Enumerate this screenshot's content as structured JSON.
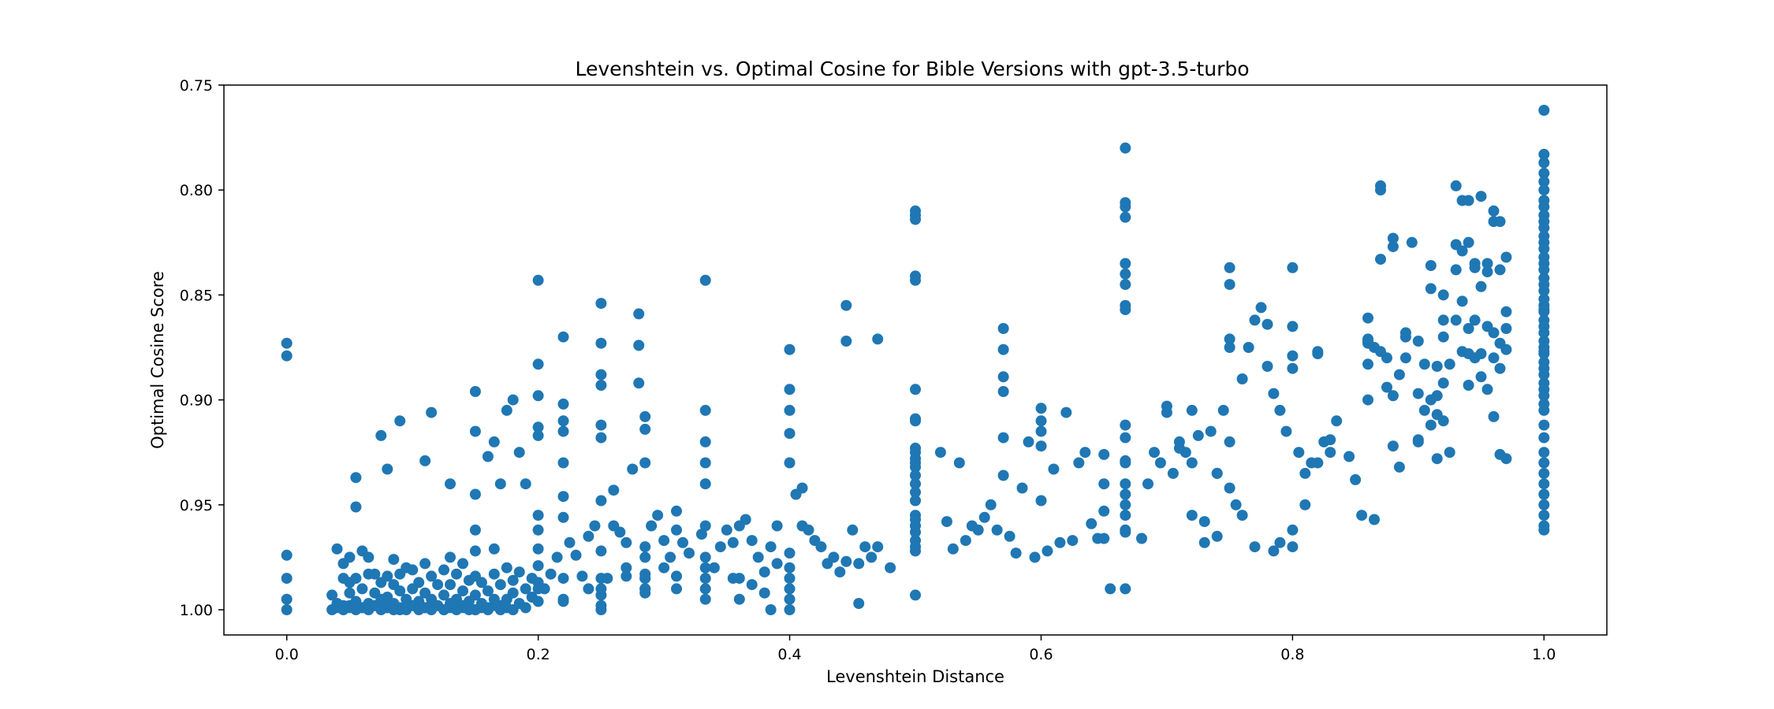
{
  "chart_data": {
    "type": "scatter",
    "title": "Levenshtein vs. Optimal Cosine for Bible Versions with gpt-3.5-turbo",
    "xlabel": "Levenshtein Distance",
    "ylabel": "Optimal Cosine Score",
    "xlim": [
      -0.05,
      1.05
    ],
    "ylim": [
      1.012,
      0.75
    ],
    "y_inverted": true,
    "grid": false,
    "legend": "none",
    "x_ticks": [
      "0.0",
      "0.2",
      "0.4",
      "0.6",
      "0.8",
      "1.0"
    ],
    "y_ticks": [
      "0.75",
      "0.80",
      "0.85",
      "0.90",
      "0.95",
      "1.00"
    ],
    "marker_color": "#1f77b4",
    "series": [
      {
        "x": [
          0,
          0,
          0,
          0,
          0,
          0,
          0.036,
          0.036,
          0.04,
          0.04,
          0.045,
          0.045,
          0.045,
          0.05,
          0.05,
          0.05,
          0.05,
          0.055,
          0.055,
          0.055,
          0.06,
          0.06,
          0.06,
          0.065,
          0.065,
          0.065,
          0.07,
          0.07,
          0.07,
          0.075,
          0.075,
          0.08,
          0.08,
          0.08,
          0.085,
          0.085,
          0.085,
          0.09,
          0.09,
          0.09,
          0.095,
          0.095,
          0.1,
          0.1,
          0.1,
          0.105,
          0.105,
          0.11,
          0.11,
          0.11,
          0.115,
          0.115,
          0.12,
          0.12,
          0.125,
          0.125,
          0.125,
          0.13,
          0.13,
          0.13,
          0.135,
          0.135,
          0.14,
          0.14,
          0.14,
          0.145,
          0.145,
          0.15,
          0.15,
          0.15,
          0.15,
          0.15,
          0.155,
          0.155,
          0.16,
          0.16,
          0.165,
          0.165,
          0.165,
          0.17,
          0.17,
          0.175,
          0.175,
          0.18,
          0.18,
          0.18,
          0.185,
          0.185,
          0.19,
          0.19,
          0.195,
          0.195,
          0.04,
          0.045,
          0.05,
          0.055,
          0.06,
          0.065,
          0.07,
          0.075,
          0.08,
          0.085,
          0.09,
          0.095,
          0.1,
          0.105,
          0.11,
          0.115,
          0.12,
          0.125,
          0.13,
          0.135,
          0.14,
          0.145,
          0.15,
          0.155,
          0.16,
          0.165,
          0.17,
          0.175,
          0.055,
          0.075,
          0.08,
          0.09,
          0.11,
          0.115,
          0.13,
          0.15,
          0.15,
          0.15,
          0.16,
          0.165,
          0.17,
          0.175,
          0.18,
          0.185,
          0.19,
          0.2,
          0.2,
          0.2,
          0.2,
          0.2,
          0.2,
          0.2,
          0.2,
          0.2,
          0.2,
          0.2,
          0.205,
          0.21,
          0.215,
          0.22,
          0.22,
          0.22,
          0.22,
          0.22,
          0.22,
          0.22,
          0.225,
          0.23,
          0.235,
          0.24,
          0.24,
          0.245,
          0.25,
          0.25,
          0.25,
          0.25,
          0.25,
          0.25,
          0.25,
          0.25,
          0.25,
          0.255,
          0.26,
          0.26,
          0.265,
          0.27,
          0.27,
          0.275,
          0.28,
          0.28,
          0.28,
          0.285,
          0.285,
          0.285,
          0.285,
          0.285,
          0.285,
          0.29,
          0.295,
          0.3,
          0.3,
          0.305,
          0.31,
          0.31,
          0.315,
          0.32,
          0.33,
          0.333,
          0.333,
          0.333,
          0.333,
          0.333,
          0.333,
          0.333,
          0.34,
          0.345,
          0.35,
          0.355,
          0.36,
          0.365,
          0.37,
          0.375,
          0.38,
          0.385,
          0.39,
          0.39,
          0.4,
          0.4,
          0.4,
          0.4,
          0.4,
          0.4,
          0.4,
          0.405,
          0.41,
          0.415,
          0.42,
          0.425,
          0.43,
          0.435,
          0.44,
          0.445,
          0.45,
          0.455,
          0.46,
          0.465,
          0.47,
          0.48,
          0.2,
          0.22,
          0.25,
          0.25,
          0.25,
          0.285,
          0.285,
          0.285,
          0.333,
          0.333,
          0.333,
          0.4,
          0.4,
          0.4,
          0.4,
          0.385,
          0.38,
          0.37,
          0.355,
          0.445,
          0.445,
          0.47,
          0.41,
          0.455,
          0.27,
          0.25,
          0.22,
          0.22,
          0.31,
          0.31,
          0.285,
          0.285,
          0.333,
          0.36,
          0.36,
          0.5,
          0.5,
          0.5,
          0.5,
          0.5,
          0.5,
          0.5,
          0.5,
          0.5,
          0.5,
          0.5,
          0.5,
          0.5,
          0.5,
          0.5,
          0.5,
          0.5,
          0.5,
          0.5,
          0.5,
          0.5,
          0.5,
          0.5,
          0.5,
          0.5,
          0.52,
          0.525,
          0.53,
          0.535,
          0.54,
          0.545,
          0.55,
          0.555,
          0.56,
          0.565,
          0.57,
          0.57,
          0.57,
          0.57,
          0.57,
          0.57,
          0.575,
          0.58,
          0.585,
          0.59,
          0.595,
          0.6,
          0.6,
          0.6,
          0.6,
          0.6,
          0.605,
          0.61,
          0.615,
          0.62,
          0.625,
          0.63,
          0.635,
          0.64,
          0.645,
          0.65,
          0.65,
          0.65,
          0.65,
          0.655,
          0.667,
          0.667,
          0.667,
          0.667,
          0.667,
          0.667,
          0.667,
          0.667,
          0.667,
          0.667,
          0.667,
          0.667,
          0.667,
          0.667,
          0.667,
          0.667,
          0.667,
          0.667,
          0.667,
          0.667,
          0.68,
          0.685,
          0.69,
          0.695,
          0.7,
          0.705,
          0.71,
          0.715,
          0.72,
          0.725,
          0.73,
          0.735,
          0.74,
          0.745,
          0.75,
          0.75,
          0.75,
          0.75,
          0.755,
          0.76,
          0.765,
          0.77,
          0.775,
          0.78,
          0.78,
          0.785,
          0.79,
          0.795,
          0.8,
          0.8,
          0.8,
          0.8,
          0.805,
          0.81,
          0.815,
          0.82,
          0.82,
          0.825,
          0.83,
          0.835,
          0.845,
          0.85,
          0.855,
          0.86,
          0.7,
          0.71,
          0.72,
          0.72,
          0.73,
          0.74,
          0.74,
          0.75,
          0.75,
          0.76,
          0.77,
          0.785,
          0.79,
          0.8,
          0.8,
          0.81,
          0.82,
          0.83,
          0.86,
          0.86,
          0.86,
          0.86,
          0.865,
          0.865,
          0.87,
          0.87,
          0.875,
          0.875,
          0.88,
          0.88,
          0.88,
          0.885,
          0.885,
          0.89,
          0.89,
          0.895,
          0.9,
          0.9,
          0.9,
          0.905,
          0.905,
          0.91,
          0.91,
          0.91,
          0.915,
          0.915,
          0.915,
          0.92,
          0.92,
          0.92,
          0.92,
          0.925,
          0.925,
          0.93,
          0.93,
          0.93,
          0.935,
          0.935,
          0.935,
          0.94,
          0.94,
          0.94,
          0.94,
          0.945,
          0.945,
          0.945,
          0.95,
          0.95,
          0.95,
          0.955,
          0.955,
          0.955,
          0.96,
          0.96,
          0.96,
          0.96,
          0.965,
          0.965,
          0.965,
          0.965,
          0.97,
          0.97,
          0.97,
          0.97,
          0.87,
          0.88,
          0.89,
          0.93,
          0.935,
          0.94,
          0.95,
          0.96,
          0.965,
          0.91,
          0.915,
          0.92,
          0.945,
          0.955,
          0.97,
          0.9,
          0.86,
          0.87,
          1,
          1,
          1,
          1,
          1,
          1,
          1,
          1,
          1,
          1,
          1,
          1,
          1,
          1,
          1,
          1,
          1,
          1,
          1,
          1,
          1,
          1,
          1,
          1,
          1,
          1,
          1,
          1,
          1,
          1,
          1,
          1,
          1,
          1,
          1,
          1,
          1,
          1,
          1,
          1,
          1,
          1,
          1,
          1,
          1,
          1,
          1,
          1,
          1,
          1
        ],
        "y": [
          0.873,
          0.879,
          0.974,
          0.985,
          0.995,
          1.0,
          1.0,
          0.993,
          0.997,
          0.971,
          0.998,
          0.985,
          0.978,
          0.999,
          0.992,
          0.987,
          0.975,
          0.996,
          0.985,
          0.951,
          0.999,
          0.99,
          0.972,
          0.997,
          0.983,
          0.975,
          0.998,
          0.992,
          0.983,
          0.995,
          0.987,
          0.999,
          0.984,
          0.994,
          0.997,
          0.988,
          0.976,
          1.0,
          0.991,
          0.983,
          0.995,
          0.98,
          0.998,
          0.99,
          0.981,
          0.996,
          0.987,
          0.999,
          0.992,
          0.978,
          0.995,
          0.984,
          0.998,
          0.988,
          1.0,
          0.993,
          0.981,
          0.997,
          0.988,
          0.975,
          0.995,
          0.983,
          0.999,
          0.991,
          0.978,
          0.996,
          0.986,
          1.0,
          0.993,
          0.984,
          0.972,
          0.962,
          0.997,
          0.987,
          0.999,
          0.991,
          0.995,
          0.983,
          0.971,
          0.998,
          0.988,
          0.995,
          0.98,
          1.0,
          0.992,
          0.986,
          0.997,
          0.982,
          0.999,
          0.99,
          0.994,
          0.985,
          0.999,
          1.0,
          0.998,
          1.0,
          0.999,
          1.0,
          0.998,
          1.0,
          0.999,
          1.0,
          0.999,
          1.0,
          0.998,
          1.0,
          0.999,
          1.0,
          0.998,
          1.0,
          0.999,
          1.0,
          0.998,
          1.0,
          1.0,
          0.999,
          1.0,
          0.998,
          1.0,
          0.999,
          0.937,
          0.917,
          0.933,
          0.91,
          0.929,
          0.906,
          0.94,
          0.896,
          0.915,
          0.945,
          0.927,
          0.92,
          0.94,
          0.905,
          0.9,
          0.925,
          0.94,
          0.843,
          0.883,
          0.898,
          0.913,
          0.917,
          0.955,
          0.962,
          0.971,
          0.979,
          0.987,
          0.996,
          0.99,
          0.983,
          0.975,
          0.87,
          0.902,
          0.91,
          0.915,
          0.93,
          0.946,
          0.956,
          0.968,
          0.974,
          0.984,
          0.99,
          0.965,
          0.96,
          0.854,
          0.873,
          0.888,
          0.893,
          0.912,
          0.918,
          0.948,
          0.972,
          0.99,
          0.985,
          0.943,
          0.96,
          0.963,
          0.968,
          0.98,
          0.933,
          0.859,
          0.874,
          0.892,
          0.908,
          0.914,
          0.93,
          0.97,
          0.985,
          0.99,
          0.96,
          0.955,
          0.967,
          0.98,
          0.975,
          0.962,
          0.953,
          0.968,
          0.973,
          0.964,
          0.843,
          0.905,
          0.92,
          0.93,
          0.94,
          0.96,
          0.975,
          0.98,
          0.97,
          0.962,
          0.968,
          0.96,
          0.957,
          0.967,
          0.975,
          0.982,
          0.97,
          0.96,
          0.978,
          0.973,
          0.98,
          0.876,
          0.895,
          0.905,
          0.916,
          0.93,
          0.945,
          0.96,
          0.962,
          0.967,
          0.97,
          0.978,
          0.975,
          0.982,
          0.977,
          0.962,
          0.978,
          0.97,
          0.975,
          0.97,
          0.98,
          0.99,
          0.995,
          0.985,
          0.993,
          0.998,
          0.975,
          0.983,
          0.992,
          0.99,
          0.98,
          0.995,
          0.985,
          0.99,
          0.995,
          1.0,
          1.0,
          0.992,
          0.988,
          0.985,
          0.855,
          0.872,
          0.871,
          0.942,
          0.997,
          0.984,
          1.0,
          0.996,
          0.985,
          0.99,
          0.984,
          0.985,
          0.99,
          0.985,
          0.995,
          0.985,
          0.81,
          0.812,
          0.814,
          0.841,
          0.843,
          0.895,
          0.909,
          0.91,
          0.923,
          0.93,
          0.94,
          0.948,
          0.955,
          0.96,
          0.967,
          0.972,
          0.993,
          0.925,
          0.928,
          0.932,
          0.936,
          0.944,
          0.957,
          0.963,
          0.97,
          0.925,
          0.958,
          0.971,
          0.93,
          0.967,
          0.96,
          0.962,
          0.956,
          0.95,
          0.962,
          0.866,
          0.876,
          0.889,
          0.896,
          0.918,
          0.936,
          0.965,
          0.973,
          0.942,
          0.92,
          0.975,
          0.904,
          0.91,
          0.915,
          0.922,
          0.948,
          0.972,
          0.933,
          0.968,
          0.906,
          0.967,
          0.93,
          0.925,
          0.959,
          0.966,
          0.926,
          0.94,
          0.953,
          0.966,
          0.99,
          0.78,
          0.806,
          0.808,
          0.813,
          0.835,
          0.84,
          0.845,
          0.855,
          0.857,
          0.912,
          0.918,
          0.929,
          0.94,
          0.945,
          0.95,
          0.955,
          0.962,
          0.963,
          0.99,
          0.93,
          0.966,
          0.94,
          0.925,
          0.93,
          0.906,
          0.935,
          0.92,
          0.925,
          0.955,
          0.917,
          0.958,
          0.915,
          0.935,
          0.905,
          0.837,
          0.845,
          0.871,
          0.875,
          0.95,
          0.89,
          0.875,
          0.862,
          0.856,
          0.864,
          0.884,
          0.897,
          0.905,
          0.915,
          0.885,
          0.837,
          0.865,
          0.879,
          0.925,
          0.935,
          0.93,
          0.878,
          0.877,
          0.92,
          0.925,
          0.91,
          0.927,
          0.938,
          0.955,
          0.872,
          0.903,
          0.923,
          0.905,
          0.93,
          0.968,
          0.935,
          0.965,
          0.92,
          0.942,
          0.955,
          0.97,
          0.972,
          0.968,
          0.97,
          0.962,
          0.95,
          0.93,
          0.919,
          0.861,
          0.871,
          0.883,
          0.9,
          0.875,
          0.957,
          0.8,
          0.833,
          0.894,
          0.88,
          0.827,
          0.922,
          0.898,
          0.888,
          0.932,
          0.87,
          0.88,
          0.825,
          0.872,
          0.897,
          0.92,
          0.883,
          0.905,
          0.836,
          0.847,
          0.912,
          0.884,
          0.898,
          0.928,
          0.862,
          0.85,
          0.87,
          0.91,
          0.883,
          0.925,
          0.798,
          0.826,
          0.862,
          0.805,
          0.853,
          0.877,
          0.825,
          0.866,
          0.878,
          0.893,
          0.837,
          0.862,
          0.88,
          0.803,
          0.846,
          0.878,
          0.835,
          0.865,
          0.895,
          0.81,
          0.815,
          0.868,
          0.88,
          0.838,
          0.873,
          0.885,
          0.926,
          0.832,
          0.858,
          0.866,
          0.928,
          0.798,
          0.823,
          0.868,
          0.838,
          0.829,
          0.805,
          0.889,
          0.908,
          0.815,
          0.9,
          0.907,
          0.892,
          0.835,
          0.839,
          0.876,
          0.919,
          0.873,
          0.877,
          0.762,
          0.783,
          0.787,
          0.792,
          0.796,
          0.8,
          0.805,
          0.808,
          0.812,
          0.815,
          0.818,
          0.822,
          0.825,
          0.828,
          0.832,
          0.835,
          0.838,
          0.842,
          0.845,
          0.848,
          0.852,
          0.855,
          0.858,
          0.862,
          0.865,
          0.868,
          0.872,
          0.875,
          0.878,
          0.882,
          0.885,
          0.888,
          0.892,
          0.895,
          0.898,
          0.902,
          0.905,
          0.912,
          0.918,
          0.925,
          0.93,
          0.935,
          0.94,
          0.945,
          0.95,
          0.955,
          0.96,
          0.962,
          0.877,
          0.857
        ]
      }
    ]
  }
}
